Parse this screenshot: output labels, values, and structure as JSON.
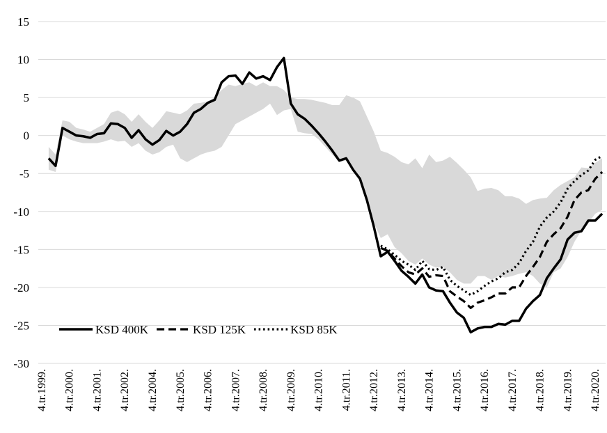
{
  "chart_data": {
    "type": "line",
    "categories": [
      "4.tr.1999.",
      null,
      null,
      null,
      "4.tr.2000.",
      null,
      null,
      null,
      "4.tr.2001.",
      null,
      null,
      null,
      "4.tr.2002.",
      null,
      null,
      null,
      "4.tr.2004.",
      null,
      null,
      null,
      "4.tr.2005.",
      null,
      null,
      null,
      "4.tr.2006.",
      null,
      null,
      null,
      "4.tr.2007.",
      null,
      null,
      null,
      "4.tr.2008.",
      null,
      null,
      null,
      "4.tr.2009.",
      null,
      null,
      null,
      "4.tr.2010.",
      null,
      null,
      null,
      "4.tr.2011.",
      null,
      null,
      null,
      "4.tr.2012.",
      null,
      null,
      null,
      "4.tr.2013.",
      null,
      null,
      null,
      "4.tr.2014.",
      null,
      null,
      null,
      "4.tr.2015.",
      null,
      null,
      null,
      "4.tr.2016.",
      null,
      null,
      null,
      "4.tr.2017.",
      null,
      null,
      null,
      "4.tr.2018.",
      null,
      null,
      null,
      "4.tr.2019.",
      null,
      null,
      null,
      "4.tr.2020.",
      null
    ],
    "range": {
      "color": "#d9d9d9",
      "high": [
        null,
        -1.5,
        -2.5,
        2,
        1.8,
        1,
        0.8,
        0.5,
        1,
        1.5,
        3,
        3.3,
        2.8,
        1.8,
        2.8,
        1.8,
        1,
        2,
        3.2,
        3,
        2.8,
        3.3,
        4.2,
        4.3,
        4.5,
        5,
        6,
        6.7,
        6.5,
        6.8,
        7,
        6.5,
        7,
        6.5,
        6.5,
        6,
        5,
        4.8,
        4.8,
        4.7,
        4.5,
        4.3,
        4,
        4,
        5.3,
        5,
        4.5,
        2.5,
        0.5,
        -2,
        -2.3,
        -2.8,
        -3.5,
        -3.8,
        -3,
        -4.3,
        -2.5,
        -3.5,
        -3.3,
        -2.8,
        -3.6,
        -4.5,
        -5.5,
        -7.3,
        -7,
        -6.9,
        -7.2,
        -8,
        -8,
        -8.3,
        -9,
        -8.5,
        -8.3,
        -8.2,
        -7.2,
        -6.5,
        -6,
        -5.5,
        -4.2,
        -4.3,
        -3.6,
        -3
      ],
      "low": [
        null,
        -4.5,
        -4.8,
        0,
        -0.5,
        -0.8,
        -1,
        -1,
        -1,
        -0.8,
        -0.5,
        -0.8,
        -0.7,
        -1.5,
        -1,
        -2,
        -2.5,
        -2.2,
        -1.5,
        -1.2,
        -3,
        -3.5,
        -3,
        -2.5,
        -2.2,
        -2,
        -1.5,
        0,
        1.5,
        2,
        2.5,
        3,
        3.5,
        4.2,
        2.7,
        3.3,
        3.5,
        0.5,
        0.3,
        0.2,
        -0.5,
        -1.5,
        -2.5,
        -3.5,
        -3.3,
        -4.5,
        -5.7,
        -8.5,
        -11.5,
        -13.5,
        -13,
        -14.7,
        -15.5,
        -16.5,
        -17,
        -16.2,
        -17,
        -17.4,
        -17.3,
        -18,
        -19,
        -19.5,
        -19.5,
        -18.5,
        -18.5,
        -19,
        -18.5,
        -18.7,
        -18.5,
        -18.2,
        -18,
        -18.5,
        -19.5,
        -20,
        -18,
        -17.5,
        -16,
        -14,
        -12.5,
        -11.5,
        -10.3,
        -9.8
      ]
    },
    "series": [
      {
        "name": "KSD 400K",
        "color": "#000000",
        "dash": "solid",
        "values": [
          null,
          -3,
          -4,
          1,
          0.5,
          0,
          -0.1,
          -0.3,
          0.2,
          0.3,
          1.6,
          1.5,
          1,
          -0.3,
          0.7,
          -0.5,
          -1.2,
          -0.6,
          0.6,
          0,
          0.5,
          1.5,
          3,
          3.5,
          4.3,
          4.7,
          7,
          7.8,
          7.9,
          6.8,
          8.3,
          7.5,
          7.8,
          7.3,
          9,
          10.2,
          4.2,
          2.8,
          2.2,
          1.3,
          0.3,
          -0.8,
          -2,
          -3.3,
          -3,
          -4.5,
          -5.7,
          -8.5,
          -12,
          -15.9,
          -15.3,
          -16.5,
          -17.8,
          -18.6,
          -19.5,
          -18.3,
          -20,
          -20.4,
          -20.5,
          -22,
          -23.3,
          -24,
          -25.9,
          -25.4,
          -25.2,
          -25.2,
          -24.8,
          -24.9,
          -24.4,
          -24.4,
          -22.8,
          -21.8,
          -21,
          -18.8,
          -17.5,
          -16.3,
          -13.7,
          -12.8,
          -12.6,
          -11.2,
          -11.2,
          -10.3
        ]
      },
      {
        "name": "KSD 125K",
        "color": "#000000",
        "dash": "dashed",
        "values": [
          null,
          null,
          null,
          null,
          null,
          null,
          null,
          null,
          null,
          null,
          null,
          null,
          null,
          null,
          null,
          null,
          null,
          null,
          null,
          null,
          null,
          null,
          null,
          null,
          null,
          null,
          null,
          null,
          null,
          null,
          null,
          null,
          null,
          null,
          null,
          null,
          null,
          null,
          null,
          null,
          null,
          null,
          null,
          null,
          null,
          null,
          null,
          null,
          null,
          -14.8,
          -15.2,
          -16.2,
          -17.2,
          -18,
          -18.3,
          -17.5,
          -18.6,
          -18.4,
          -18.5,
          -20.5,
          -21.2,
          -21.8,
          -22.7,
          -22,
          -21.7,
          -21.3,
          -20.8,
          -20.8,
          -20,
          -20,
          -18.5,
          -17.3,
          -16,
          -14,
          -13,
          -12.2,
          -10.7,
          -8.5,
          -7.5,
          -7.2,
          -5.7,
          -4.8
        ]
      },
      {
        "name": "KSD 85K",
        "color": "#000000",
        "dash": "dotted",
        "values": [
          null,
          null,
          null,
          null,
          null,
          null,
          null,
          null,
          null,
          null,
          null,
          null,
          null,
          null,
          null,
          null,
          null,
          null,
          null,
          null,
          null,
          null,
          null,
          null,
          null,
          null,
          null,
          null,
          null,
          null,
          null,
          null,
          null,
          null,
          null,
          null,
          null,
          null,
          null,
          null,
          null,
          null,
          null,
          null,
          null,
          null,
          null,
          null,
          null,
          -14.5,
          -15,
          -15.7,
          -16.5,
          -17,
          -17.7,
          -16.5,
          -17.6,
          -17.7,
          -17.3,
          -19,
          -19.8,
          -20.4,
          -21,
          -20.5,
          -19.8,
          -19.2,
          -18.8,
          -18,
          -17.7,
          -16.8,
          -15.2,
          -14,
          -12,
          -10.8,
          -10,
          -8.8,
          -7,
          -6,
          -5.2,
          -4.6,
          -3.2,
          -2.7
        ]
      }
    ],
    "ylim": [
      -30,
      15
    ],
    "yticks": [
      -30,
      -25,
      -20,
      -15,
      -10,
      -5,
      0,
      5,
      10,
      15
    ],
    "grid": true,
    "legend": "lower left"
  }
}
